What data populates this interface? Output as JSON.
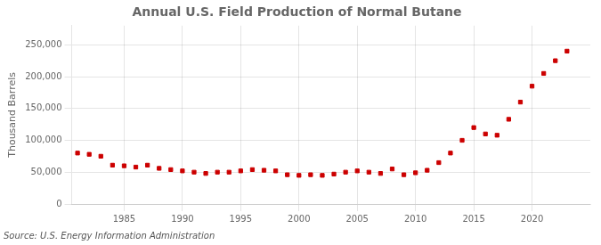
{
  "chart_data": {
    "type": "scatter",
    "title": "Annual U.S. Field Production of Normal Butane",
    "ylabel": "Thousand Barrels",
    "annotations": [
      "Source: U.S. Energy Information Administration"
    ],
    "x": [
      1981,
      1982,
      1983,
      1984,
      1985,
      1986,
      1987,
      1988,
      1989,
      1990,
      1991,
      1992,
      1993,
      1994,
      1995,
      1996,
      1997,
      1998,
      1999,
      2000,
      2001,
      2002,
      2003,
      2004,
      2005,
      2006,
      2007,
      2008,
      2009,
      2010,
      2011,
      2012,
      2013,
      2014,
      2015,
      2016,
      2017,
      2018,
      2019,
      2020,
      2021,
      2022,
      2023
    ],
    "values": [
      80000,
      78000,
      75000,
      61000,
      60000,
      58000,
      61000,
      56000,
      54000,
      52000,
      50000,
      48000,
      50000,
      50000,
      52000,
      54000,
      53000,
      52000,
      46000,
      45000,
      46000,
      45000,
      47000,
      50000,
      52000,
      50000,
      48000,
      55000,
      46000,
      49000,
      53000,
      65000,
      80000,
      100000,
      120000,
      110000,
      108000,
      133000,
      160000,
      185000,
      205000,
      225000,
      240000
    ],
    "color": "#cc0000",
    "marker": "square",
    "xlim": [
      1980.5,
      2025
    ],
    "xticks": [
      1985,
      1990,
      1995,
      2000,
      2005,
      2010,
      2015,
      2020
    ],
    "ylim": [
      0,
      280000
    ],
    "yticks": [
      0,
      {
        "value": 50000,
        "label": "50,000"
      },
      {
        "value": 100000,
        "label": "100,000"
      },
      {
        "value": 150000,
        "label": "150,000"
      },
      {
        "value": 200000,
        "label": "200,000"
      },
      {
        "value": 250000,
        "label": "250,000"
      }
    ],
    "grid": true
  }
}
